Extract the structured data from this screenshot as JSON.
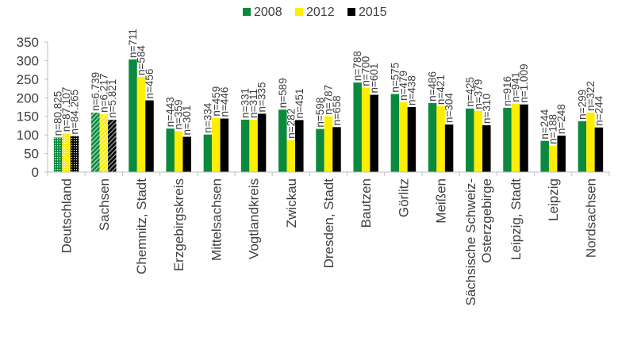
{
  "chart_data": {
    "type": "bar",
    "ylim": [
      0,
      350
    ],
    "yticks": [
      0,
      50,
      100,
      150,
      200,
      250,
      300,
      350
    ],
    "grid": false,
    "legend_position": "top-center",
    "categories": [
      "Deutschland",
      "Sachsen",
      "Chemnitz, Stadt",
      "Erzgebirgskreis",
      "Mittelsachsen",
      "Vogtlandkreis",
      "Zwickau",
      "Dresden, Stadt",
      "Bautzen",
      "Görlitz",
      "Meißen",
      "Sächsische Schweiz-\nOsterzgebirge",
      "Leipzig, Stadt",
      "Leipzig",
      "Nordsachsen"
    ],
    "series": [
      {
        "name": "2008",
        "color": "#0b8a3e",
        "values": [
          93,
          160,
          303,
          117,
          101,
          141,
          168,
          116,
          241,
          210,
          186,
          171,
          173,
          84,
          137
        ],
        "labels": [
          "n=80.825",
          "n=6.739",
          "n=711",
          "n=443",
          "n=334",
          "n=331",
          "n=589",
          "n=598",
          "n=788",
          "n=575",
          "n=486",
          "n=425",
          "n=916",
          "n=244",
          "n=299"
        ]
      },
      {
        "name": "2012",
        "color": "#ffee00",
        "values": [
          104,
          156,
          256,
          110,
          146,
          141,
          86,
          150,
          227,
          188,
          177,
          165,
          184,
          71,
          160
        ],
        "labels": [
          "n=87.107",
          "n=6.217",
          "n=584",
          "n=359",
          "n=459",
          "n=311",
          "n=282",
          "n=787",
          "n=700",
          "n=479",
          "n=421",
          "n=379",
          "n=941",
          "n=188",
          "n=322"
        ]
      },
      {
        "name": "2015",
        "color": "#000000",
        "values": [
          97,
          141,
          193,
          95,
          144,
          157,
          140,
          121,
          208,
          175,
          128,
          126,
          182,
          98,
          120
        ],
        "labels": [
          "n=84.265",
          "n=5.821",
          "n=456",
          "n=301",
          "n=446",
          "n=335",
          "n=451",
          "n=658",
          "n=601",
          "n=438",
          "n=304",
          "n=310",
          "n=1.009",
          "n=248",
          "n=244"
        ]
      }
    ],
    "patterned_categories": [
      "Deutschland",
      "Sachsen"
    ]
  }
}
